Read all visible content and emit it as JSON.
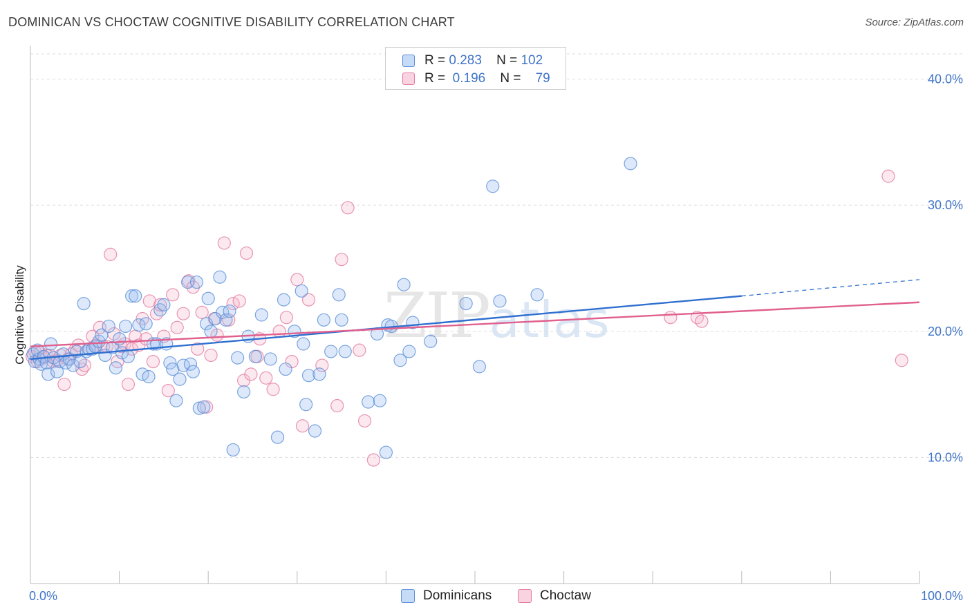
{
  "title": "DOMINICAN VS CHOCTAW COGNITIVE DISABILITY CORRELATION CHART",
  "source": "Source: ZipAtlas.com",
  "watermark": {
    "zip": "ZIP",
    "atlas": "atlas"
  },
  "legend": {
    "rows": [
      {
        "r_label": "R =",
        "r_value": "0.283",
        "n_label": "N =",
        "n_value": "102",
        "color": "#9dc0f0",
        "border": "#5b8fd6"
      },
      {
        "r_label": "R =",
        "r_value": "0.196",
        "n_label": "N =",
        "n_value": "79",
        "color": "#f6bcd0",
        "border": "#e27aa0"
      }
    ]
  },
  "bottom_legend": [
    {
      "label": "Dominicans",
      "color": "#9dc0f0",
      "border": "#5b8fd6"
    },
    {
      "label": "Choctaw",
      "color": "#f6bcd0",
      "border": "#e27aa0"
    }
  ],
  "colors": {
    "blue": "#4f86d6",
    "pink": "#e5709a",
    "blue_line": "#2f6fd0",
    "pink_line": "#e0608e",
    "axis_text": "#3f74c8",
    "grid": "#dddddd"
  },
  "chart_data": {
    "type": "scatter",
    "title": "DOMINICAN VS CHOCTAW COGNITIVE DISABILITY CORRELATION CHART",
    "xlabel": "",
    "ylabel": "Cognitive Disability",
    "xlim": [
      0,
      100
    ],
    "ylim": [
      0,
      42
    ],
    "x_tick_labels": [
      "0.0%",
      "100.0%"
    ],
    "y_ticks": [
      10,
      20,
      30,
      40
    ],
    "y_tick_labels": [
      "10.0%",
      "20.0%",
      "30.0%",
      "40.0%"
    ],
    "grid": true,
    "legend_position": "top-center",
    "series": [
      {
        "name": "Dominicans",
        "R": 0.283,
        "N": 102,
        "trend": {
          "x0": 0,
          "y0": 17.8,
          "x1": 80,
          "y1": 22.8,
          "dashed_to_x": 100,
          "dashed_to_y": 24.1
        },
        "points": [
          [
            0.3,
            18.2
          ],
          [
            0.5,
            17.6
          ],
          [
            0.8,
            18.5
          ],
          [
            1.0,
            17.8
          ],
          [
            1.2,
            17.4
          ],
          [
            1.5,
            18.0
          ],
          [
            1.8,
            17.5
          ],
          [
            2.0,
            16.6
          ],
          [
            2.3,
            19.0
          ],
          [
            2.6,
            17.9
          ],
          [
            3.0,
            16.8
          ],
          [
            3.3,
            17.6
          ],
          [
            3.7,
            18.2
          ],
          [
            4.0,
            17.5
          ],
          [
            4.4,
            17.8
          ],
          [
            4.8,
            17.3
          ],
          [
            5.2,
            18.4
          ],
          [
            5.6,
            17.6
          ],
          [
            6.0,
            22.2
          ],
          [
            6.3,
            18.4
          ],
          [
            6.6,
            18.6
          ],
          [
            7.0,
            18.6
          ],
          [
            7.3,
            18.8
          ],
          [
            7.7,
            19.2
          ],
          [
            8.0,
            19.7
          ],
          [
            8.4,
            18.1
          ],
          [
            8.8,
            20.4
          ],
          [
            9.2,
            18.7
          ],
          [
            9.6,
            17.1
          ],
          [
            10.0,
            19.4
          ],
          [
            10.3,
            18.3
          ],
          [
            10.7,
            20.4
          ],
          [
            11.0,
            18.0
          ],
          [
            11.4,
            22.8
          ],
          [
            11.8,
            22.8
          ],
          [
            12.2,
            20.5
          ],
          [
            12.6,
            16.6
          ],
          [
            13.0,
            20.6
          ],
          [
            13.3,
            16.4
          ],
          [
            13.8,
            19.0
          ],
          [
            14.2,
            19.0
          ],
          [
            14.6,
            21.7
          ],
          [
            15.0,
            22.1
          ],
          [
            15.3,
            19.0
          ],
          [
            15.7,
            17.5
          ],
          [
            16.0,
            17.0
          ],
          [
            16.4,
            14.5
          ],
          [
            16.8,
            16.2
          ],
          [
            17.2,
            17.3
          ],
          [
            17.7,
            23.9
          ],
          [
            18.0,
            17.4
          ],
          [
            18.3,
            16.8
          ],
          [
            18.7,
            23.9
          ],
          [
            19.0,
            13.9
          ],
          [
            19.5,
            14.0
          ],
          [
            19.8,
            20.6
          ],
          [
            20.0,
            22.6
          ],
          [
            20.3,
            20.0
          ],
          [
            20.8,
            21.0
          ],
          [
            21.3,
            24.3
          ],
          [
            21.6,
            21.5
          ],
          [
            22.0,
            20.9
          ],
          [
            22.4,
            21.6
          ],
          [
            22.8,
            10.6
          ],
          [
            23.3,
            17.9
          ],
          [
            24.0,
            15.2
          ],
          [
            24.5,
            19.6
          ],
          [
            25.3,
            18.0
          ],
          [
            26.0,
            21.3
          ],
          [
            27.0,
            17.8
          ],
          [
            27.8,
            11.6
          ],
          [
            28.5,
            22.5
          ],
          [
            28.7,
            17.0
          ],
          [
            29.7,
            20.0
          ],
          [
            30.5,
            23.2
          ],
          [
            30.7,
            19.0
          ],
          [
            31.0,
            14.2
          ],
          [
            31.3,
            16.5
          ],
          [
            32.0,
            12.1
          ],
          [
            32.5,
            16.6
          ],
          [
            33.0,
            20.9
          ],
          [
            33.8,
            18.4
          ],
          [
            34.7,
            22.9
          ],
          [
            35.0,
            20.9
          ],
          [
            35.4,
            18.4
          ],
          [
            38.0,
            14.4
          ],
          [
            39.0,
            19.8
          ],
          [
            39.3,
            14.5
          ],
          [
            40.0,
            10.4
          ],
          [
            40.2,
            20.5
          ],
          [
            40.6,
            20.4
          ],
          [
            41.6,
            17.7
          ],
          [
            42.0,
            23.7
          ],
          [
            42.6,
            18.4
          ],
          [
            43.0,
            20.7
          ],
          [
            45.0,
            19.2
          ],
          [
            49.0,
            22.2
          ],
          [
            50.5,
            17.2
          ],
          [
            52.0,
            31.5
          ],
          [
            52.8,
            22.4
          ],
          [
            57.0,
            22.9
          ],
          [
            67.5,
            33.3
          ]
        ]
      },
      {
        "name": "Choctaw",
        "R": 0.196,
        "N": 79,
        "trend": {
          "x0": 0,
          "y0": 18.8,
          "x1": 100,
          "y1": 22.3
        },
        "points": [
          [
            0.2,
            18.0
          ],
          [
            0.5,
            18.4
          ],
          [
            0.8,
            17.6
          ],
          [
            1.1,
            18.3
          ],
          [
            1.5,
            17.9
          ],
          [
            1.8,
            18.1
          ],
          [
            2.2,
            18.1
          ],
          [
            2.6,
            17.6
          ],
          [
            3.0,
            17.7
          ],
          [
            3.4,
            18.1
          ],
          [
            3.8,
            15.8
          ],
          [
            4.2,
            17.8
          ],
          [
            4.6,
            18.2
          ],
          [
            5.0,
            18.5
          ],
          [
            5.4,
            18.9
          ],
          [
            5.8,
            17.0
          ],
          [
            6.1,
            17.3
          ],
          [
            6.6,
            18.6
          ],
          [
            7.0,
            19.6
          ],
          [
            7.4,
            18.9
          ],
          [
            7.8,
            20.3
          ],
          [
            8.2,
            18.8
          ],
          [
            8.6,
            18.8
          ],
          [
            9.0,
            26.1
          ],
          [
            9.4,
            19.8
          ],
          [
            9.8,
            17.6
          ],
          [
            10.2,
            18.8
          ],
          [
            10.6,
            19.0
          ],
          [
            11.0,
            15.8
          ],
          [
            11.4,
            18.6
          ],
          [
            11.8,
            19.6
          ],
          [
            12.2,
            18.9
          ],
          [
            12.6,
            21.0
          ],
          [
            13.0,
            19.4
          ],
          [
            13.4,
            22.4
          ],
          [
            13.8,
            17.6
          ],
          [
            14.2,
            21.4
          ],
          [
            14.6,
            22.1
          ],
          [
            15.0,
            19.6
          ],
          [
            15.5,
            15.3
          ],
          [
            16.0,
            22.9
          ],
          [
            16.5,
            20.3
          ],
          [
            17.2,
            21.4
          ],
          [
            17.8,
            24.0
          ],
          [
            18.3,
            23.5
          ],
          [
            18.8,
            18.6
          ],
          [
            19.3,
            21.5
          ],
          [
            19.8,
            14.0
          ],
          [
            20.3,
            18.1
          ],
          [
            20.7,
            21.0
          ],
          [
            21.0,
            19.7
          ],
          [
            21.8,
            27.0
          ],
          [
            22.3,
            20.9
          ],
          [
            22.8,
            22.2
          ],
          [
            23.5,
            22.4
          ],
          [
            24.0,
            16.1
          ],
          [
            24.3,
            26.2
          ],
          [
            24.8,
            16.6
          ],
          [
            25.5,
            18.0
          ],
          [
            25.8,
            19.4
          ],
          [
            26.5,
            16.3
          ],
          [
            27.3,
            15.4
          ],
          [
            28.0,
            20.0
          ],
          [
            28.8,
            21.1
          ],
          [
            29.4,
            17.6
          ],
          [
            30.0,
            24.1
          ],
          [
            30.6,
            12.5
          ],
          [
            31.3,
            22.5
          ],
          [
            32.8,
            17.3
          ],
          [
            34.5,
            14.1
          ],
          [
            35.0,
            25.7
          ],
          [
            35.7,
            29.8
          ],
          [
            37.0,
            18.5
          ],
          [
            37.6,
            12.9
          ],
          [
            38.6,
            9.8
          ],
          [
            72.0,
            21.1
          ],
          [
            75.0,
            21.1
          ],
          [
            75.5,
            20.8
          ],
          [
            96.5,
            32.3
          ],
          [
            98.0,
            17.7
          ]
        ]
      }
    ]
  }
}
